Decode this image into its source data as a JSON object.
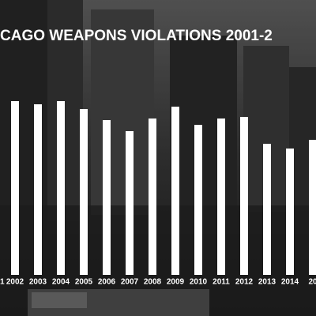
{
  "chart_data": {
    "type": "bar",
    "title": "CAGO WEAPONS VIOLATIONS 2001-2",
    "categories": [
      "1",
      "2002",
      "2003",
      "2004",
      "2005",
      "2006",
      "2007",
      "2008",
      "2009",
      "2010",
      "2011",
      "2012",
      "2013",
      "2014",
      "20"
    ],
    "values": [
      null,
      220,
      216,
      220,
      210,
      196,
      182,
      198,
      213,
      190,
      198,
      200,
      166,
      160,
      171
    ],
    "color": "#ffffff",
    "ylim": [
      0,
      220
    ]
  }
}
